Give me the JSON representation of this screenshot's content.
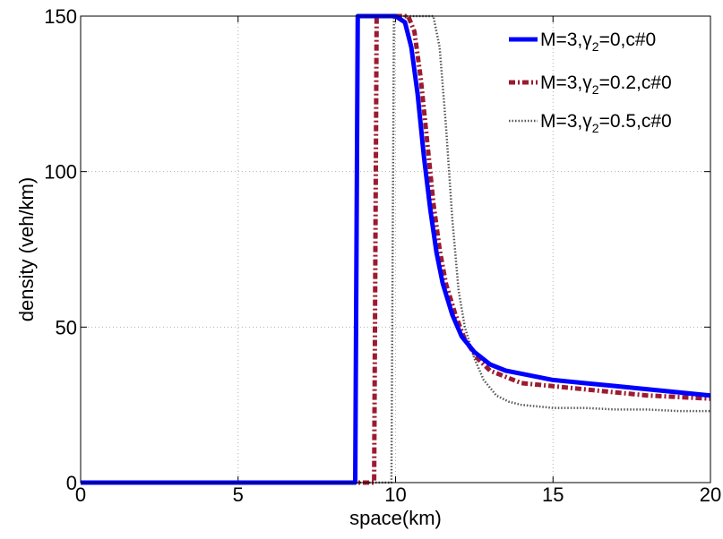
{
  "chart_data": {
    "type": "line",
    "title": "",
    "xlabel": "space(km)",
    "ylabel": "density (veh/km)",
    "xlim": [
      0,
      20
    ],
    "ylim": [
      0,
      150
    ],
    "xticks": [
      0,
      5,
      10,
      15,
      20
    ],
    "yticks": [
      0,
      50,
      100,
      150
    ],
    "xtick_labels": [
      "0",
      "5",
      "10",
      "15",
      "20"
    ],
    "ytick_labels": [
      "0",
      "50",
      "100",
      "150"
    ],
    "grid": true,
    "legend_position": "top-right",
    "series": [
      {
        "name": "M=3,γ2=0,c#0",
        "legend": {
          "pre": "M=3,γ",
          "sub": "2",
          "post": "=0,c#0"
        },
        "color": "#0000ff",
        "style": "solid",
        "x": [
          0,
          8.7,
          8.72,
          8.8,
          8.85,
          10.0,
          10.3,
          10.5,
          10.7,
          10.9,
          11.1,
          11.3,
          11.5,
          11.8,
          12.1,
          12.5,
          13.0,
          13.5,
          14.0,
          15.0,
          16.0,
          17.0,
          18.0,
          19.0,
          20.0
        ],
        "y": [
          0,
          0,
          0,
          150,
          150,
          150,
          148,
          140,
          125,
          105,
          88,
          74,
          64,
          54,
          47,
          42,
          38,
          36,
          35,
          33,
          32,
          31,
          30,
          29,
          28
        ]
      },
      {
        "name": "M=3,γ2=0.2,c#0",
        "legend": {
          "pre": "M=3,γ",
          "sub": "2",
          "post": "=0.2,c#0"
        },
        "color": "#9b1b30",
        "style": "dashdot",
        "x": [
          0,
          9.3,
          9.32,
          9.4,
          9.45,
          10.4,
          10.6,
          10.8,
          11.0,
          11.2,
          11.4,
          11.6,
          11.9,
          12.2,
          12.6,
          13.0,
          13.5,
          14.0,
          15.0,
          16.0,
          17.0,
          18.0,
          19.0,
          20.0
        ],
        "y": [
          0,
          0,
          0,
          150,
          150,
          150,
          145,
          130,
          110,
          90,
          75,
          64,
          54,
          46,
          40,
          36,
          34,
          32,
          31,
          30,
          29,
          28,
          27.5,
          27
        ]
      },
      {
        "name": "M=3,γ2=0.5,c#0",
        "legend": {
          "pre": "M=3,γ",
          "sub": "2",
          "post": "=0.5,c#0"
        },
        "color": "#555555",
        "style": "dotted",
        "x": [
          0,
          9.85,
          9.87,
          9.95,
          10.0,
          11.2,
          11.4,
          11.6,
          11.8,
          12.0,
          12.2,
          12.5,
          12.8,
          13.2,
          13.6,
          14.0,
          15.0,
          16.0,
          17.0,
          18.0,
          19.0,
          20.0
        ],
        "y": [
          0,
          0,
          0,
          150,
          150,
          150,
          140,
          115,
          85,
          62,
          50,
          40,
          33,
          28,
          26,
          25,
          24,
          24,
          23.5,
          23.5,
          23,
          23
        ]
      }
    ]
  }
}
